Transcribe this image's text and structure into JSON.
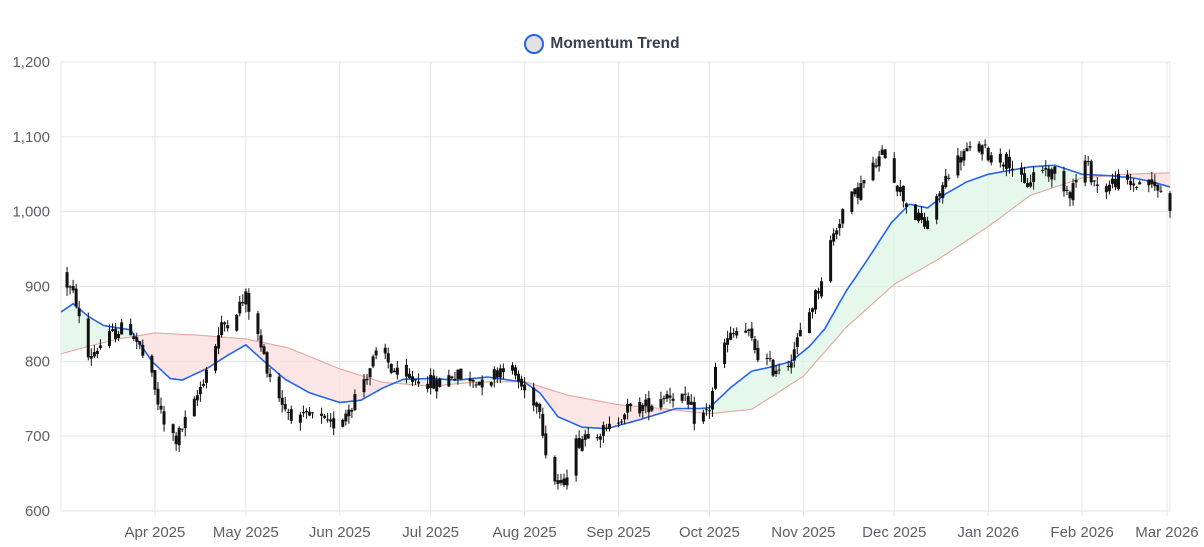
{
  "legend": {
    "label": "Momentum Trend",
    "swatch_fill": "#e2e2e2",
    "swatch_stroke": "#2563eb"
  },
  "chart_data": {
    "type": "candlestick",
    "title": "",
    "xlabel": "",
    "ylabel": "",
    "ylim": [
      600,
      1200
    ],
    "xlim": [
      "2025-03-01",
      "2026-03-02"
    ],
    "yticks": [
      600,
      700,
      800,
      900,
      1000,
      1100,
      1200
    ],
    "ytick_labels": [
      "600",
      "700",
      "800",
      "900",
      "1,000",
      "1,100",
      "1,200"
    ],
    "xticks": [
      "2025-04-01",
      "2025-05-01",
      "2025-06-01",
      "2025-07-01",
      "2025-08-01",
      "2025-09-01",
      "2025-10-01",
      "2025-11-01",
      "2025-12-01",
      "2026-01-01",
      "2026-02-01",
      "2026-03-01"
    ],
    "xtick_labels": [
      "Apr 2025",
      "May 2025",
      "Jun 2025",
      "Jul 2025",
      "Aug 2025",
      "Sep 2025",
      "Oct 2025",
      "Nov 2025",
      "Dec 2025",
      "Jan 2026",
      "Feb 2026",
      "Mar 2026"
    ],
    "grid": true,
    "legend_position": "top-center",
    "colors": {
      "candle": "#111111",
      "fast_line": "#2563eb",
      "slow_line": "#e9a3a0",
      "bull_fill": "#dcf5e4",
      "bear_fill": "#fbdcdc",
      "grid": "#e5e5e5"
    },
    "price_waypoints": [
      [
        "2025-03-01",
        918
      ],
      [
        "2025-03-06",
        880
      ],
      [
        "2025-03-09",
        802
      ],
      [
        "2025-03-14",
        822
      ],
      [
        "2025-03-20",
        842
      ],
      [
        "2025-03-24",
        843
      ],
      [
        "2025-03-27",
        818
      ],
      [
        "2025-03-31",
        775
      ],
      [
        "2025-04-04",
        714
      ],
      [
        "2025-04-08",
        695
      ],
      [
        "2025-04-14",
        742
      ],
      [
        "2025-04-18",
        790
      ],
      [
        "2025-04-23",
        845
      ],
      [
        "2025-04-28",
        870
      ],
      [
        "2025-05-01",
        885
      ],
      [
        "2025-05-06",
        818
      ],
      [
        "2025-05-10",
        770
      ],
      [
        "2025-05-14",
        738
      ],
      [
        "2025-05-19",
        720
      ],
      [
        "2025-05-24",
        728
      ],
      [
        "2025-05-28",
        712
      ],
      [
        "2025-06-01",
        722
      ],
      [
        "2025-06-05",
        745
      ],
      [
        "2025-06-08",
        770
      ],
      [
        "2025-06-12",
        800
      ],
      [
        "2025-06-15",
        815
      ],
      [
        "2025-06-18",
        790
      ],
      [
        "2025-06-22",
        772
      ],
      [
        "2025-06-27",
        778
      ],
      [
        "2025-07-03",
        768
      ],
      [
        "2025-07-08",
        783
      ],
      [
        "2025-07-14",
        773
      ],
      [
        "2025-07-20",
        775
      ],
      [
        "2025-07-26",
        800
      ],
      [
        "2025-08-01",
        760
      ],
      [
        "2025-08-06",
        742
      ],
      [
        "2025-08-09",
        650
      ],
      [
        "2025-08-13",
        632
      ],
      [
        "2025-08-18",
        690
      ],
      [
        "2025-08-23",
        712
      ],
      [
        "2025-08-28",
        705
      ],
      [
        "2025-09-03",
        735
      ],
      [
        "2025-09-10",
        740
      ],
      [
        "2025-09-17",
        758
      ],
      [
        "2025-09-22",
        752
      ],
      [
        "2025-09-27",
        718
      ],
      [
        "2025-10-01",
        738
      ],
      [
        "2025-10-04",
        812
      ],
      [
        "2025-10-08",
        832
      ],
      [
        "2025-10-12",
        848
      ],
      [
        "2025-10-17",
        810
      ],
      [
        "2025-10-22",
        790
      ],
      [
        "2025-10-27",
        800
      ],
      [
        "2025-11-01",
        845
      ],
      [
        "2025-11-06",
        898
      ],
      [
        "2025-11-10",
        958
      ],
      [
        "2025-11-14",
        1002
      ],
      [
        "2025-11-19",
        1028
      ],
      [
        "2025-11-24",
        1058
      ],
      [
        "2025-11-28",
        1080
      ],
      [
        "2025-12-01",
        1045
      ],
      [
        "2025-12-06",
        1002
      ],
      [
        "2025-12-11",
        982
      ],
      [
        "2025-12-15",
        1012
      ],
      [
        "2025-12-19",
        1055
      ],
      [
        "2025-12-24",
        1078
      ],
      [
        "2025-12-29",
        1085
      ],
      [
        "2026-01-03",
        1072
      ],
      [
        "2026-01-08",
        1068
      ],
      [
        "2026-01-13",
        1032
      ],
      [
        "2026-01-18",
        1062
      ],
      [
        "2026-01-23",
        1048
      ],
      [
        "2026-01-28",
        1028
      ],
      [
        "2026-02-02",
        1065
      ],
      [
        "2026-02-07",
        1025
      ],
      [
        "2026-02-12",
        1042
      ],
      [
        "2026-02-17",
        1035
      ],
      [
        "2026-02-22",
        1042
      ],
      [
        "2026-02-26",
        1030
      ],
      [
        "2026-03-02",
        1010
      ]
    ],
    "fast_line_waypoints": [
      [
        "2025-03-01",
        866
      ],
      [
        "2025-03-05",
        877
      ],
      [
        "2025-03-10",
        860
      ],
      [
        "2025-03-15",
        848
      ],
      [
        "2025-03-24",
        842
      ],
      [
        "2025-03-31",
        800
      ],
      [
        "2025-04-06",
        777
      ],
      [
        "2025-04-10",
        775
      ],
      [
        "2025-04-18",
        790
      ],
      [
        "2025-04-25",
        808
      ],
      [
        "2025-05-01",
        822
      ],
      [
        "2025-05-07",
        800
      ],
      [
        "2025-05-14",
        776
      ],
      [
        "2025-05-22",
        758
      ],
      [
        "2025-06-01",
        745
      ],
      [
        "2025-06-08",
        748
      ],
      [
        "2025-06-15",
        764
      ],
      [
        "2025-06-22",
        776
      ],
      [
        "2025-07-01",
        777
      ],
      [
        "2025-07-10",
        775
      ],
      [
        "2025-07-20",
        779
      ],
      [
        "2025-08-01",
        772
      ],
      [
        "2025-08-06",
        758
      ],
      [
        "2025-08-12",
        726
      ],
      [
        "2025-08-20",
        712
      ],
      [
        "2025-08-28",
        710
      ],
      [
        "2025-09-08",
        722
      ],
      [
        "2025-09-20",
        737
      ],
      [
        "2025-09-28",
        737
      ],
      [
        "2025-10-01",
        738
      ],
      [
        "2025-10-08",
        765
      ],
      [
        "2025-10-15",
        787
      ],
      [
        "2025-10-22",
        793
      ],
      [
        "2025-10-28",
        800
      ],
      [
        "2025-11-03",
        820
      ],
      [
        "2025-11-08",
        843
      ],
      [
        "2025-11-15",
        893
      ],
      [
        "2025-11-22",
        935
      ],
      [
        "2025-11-30",
        985
      ],
      [
        "2025-12-06",
        1010
      ],
      [
        "2025-12-12",
        1005
      ],
      [
        "2025-12-18",
        1024
      ],
      [
        "2025-12-25",
        1040
      ],
      [
        "2026-01-01",
        1050
      ],
      [
        "2026-01-08",
        1055
      ],
      [
        "2026-01-15",
        1060
      ],
      [
        "2026-01-23",
        1062
      ],
      [
        "2026-02-01",
        1050
      ],
      [
        "2026-02-10",
        1048
      ],
      [
        "2026-02-18",
        1045
      ],
      [
        "2026-02-24",
        1040
      ],
      [
        "2026-03-02",
        1033
      ]
    ],
    "slow_line_waypoints": [
      [
        "2025-03-01",
        810
      ],
      [
        "2025-03-10",
        820
      ],
      [
        "2025-03-20",
        830
      ],
      [
        "2025-04-01",
        838
      ],
      [
        "2025-04-15",
        835
      ],
      [
        "2025-05-01",
        830
      ],
      [
        "2025-05-15",
        818
      ],
      [
        "2025-06-01",
        790
      ],
      [
        "2025-06-15",
        772
      ],
      [
        "2025-07-01",
        767
      ],
      [
        "2025-07-15",
        772
      ],
      [
        "2025-08-01",
        773
      ],
      [
        "2025-08-15",
        755
      ],
      [
        "2025-09-01",
        742
      ],
      [
        "2025-09-15",
        737
      ],
      [
        "2025-10-01",
        730
      ],
      [
        "2025-10-15",
        736
      ],
      [
        "2025-11-01",
        780
      ],
      [
        "2025-11-15",
        845
      ],
      [
        "2025-12-01",
        903
      ],
      [
        "2025-12-15",
        935
      ],
      [
        "2026-01-01",
        980
      ],
      [
        "2026-01-15",
        1022
      ],
      [
        "2026-02-01",
        1045
      ],
      [
        "2026-02-15",
        1050
      ],
      [
        "2026-03-02",
        1052
      ]
    ]
  }
}
